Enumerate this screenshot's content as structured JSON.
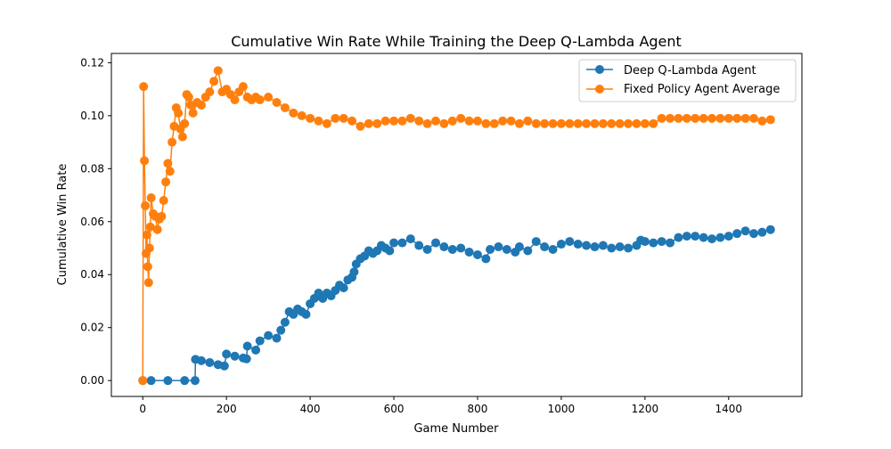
{
  "chart_data": {
    "type": "line",
    "title": "Cumulative Win Rate While Training the Deep Q-Lambda Agent",
    "xlabel": "Game Number",
    "ylabel": "Cumulative Win Rate",
    "xlim": [
      -75,
      1575
    ],
    "ylim": [
      -0.006,
      0.1235
    ],
    "xticks": [
      0,
      200,
      400,
      600,
      800,
      1000,
      1200,
      1400
    ],
    "yticks": [
      0.0,
      0.02,
      0.04,
      0.06,
      0.08,
      0.1,
      0.12
    ],
    "ytick_labels": [
      "0.00",
      "0.02",
      "0.04",
      "0.06",
      "0.08",
      "0.10",
      "0.12"
    ],
    "grid": false,
    "legend_position": "upper right",
    "series": [
      {
        "name": "Deep Q-Lambda Agent",
        "color": "#1f77b4",
        "marker": "circle",
        "points": [
          [
            0,
            0
          ],
          [
            20,
            0
          ],
          [
            60,
            0
          ],
          [
            100,
            0
          ],
          [
            125,
            0
          ],
          [
            126,
            0.008
          ],
          [
            140,
            0.0075
          ],
          [
            160,
            0.0068
          ],
          [
            180,
            0.006
          ],
          [
            195,
            0.0055
          ],
          [
            200,
            0.01
          ],
          [
            220,
            0.0092
          ],
          [
            240,
            0.0085
          ],
          [
            248,
            0.0082
          ],
          [
            250,
            0.013
          ],
          [
            270,
            0.0115
          ],
          [
            280,
            0.015
          ],
          [
            300,
            0.017
          ],
          [
            320,
            0.016
          ],
          [
            330,
            0.019
          ],
          [
            340,
            0.022
          ],
          [
            350,
            0.026
          ],
          [
            360,
            0.025
          ],
          [
            370,
            0.027
          ],
          [
            380,
            0.026
          ],
          [
            390,
            0.025
          ],
          [
            400,
            0.029
          ],
          [
            410,
            0.031
          ],
          [
            420,
            0.033
          ],
          [
            430,
            0.031
          ],
          [
            440,
            0.033
          ],
          [
            450,
            0.032
          ],
          [
            460,
            0.034
          ],
          [
            470,
            0.036
          ],
          [
            480,
            0.035
          ],
          [
            490,
            0.038
          ],
          [
            500,
            0.039
          ],
          [
            505,
            0.041
          ],
          [
            510,
            0.044
          ],
          [
            520,
            0.046
          ],
          [
            530,
            0.047
          ],
          [
            540,
            0.049
          ],
          [
            550,
            0.048
          ],
          [
            560,
            0.049
          ],
          [
            570,
            0.051
          ],
          [
            580,
            0.05
          ],
          [
            590,
            0.049
          ],
          [
            600,
            0.052
          ],
          [
            620,
            0.052
          ],
          [
            640,
            0.0535
          ],
          [
            660,
            0.051
          ],
          [
            680,
            0.0495
          ],
          [
            700,
            0.052
          ],
          [
            720,
            0.0505
          ],
          [
            740,
            0.0495
          ],
          [
            760,
            0.05
          ],
          [
            780,
            0.0485
          ],
          [
            800,
            0.0475
          ],
          [
            820,
            0.046
          ],
          [
            830,
            0.0495
          ],
          [
            850,
            0.0505
          ],
          [
            870,
            0.0495
          ],
          [
            890,
            0.0485
          ],
          [
            900,
            0.0505
          ],
          [
            920,
            0.049
          ],
          [
            940,
            0.0525
          ],
          [
            960,
            0.0505
          ],
          [
            980,
            0.0495
          ],
          [
            1000,
            0.0515
          ],
          [
            1020,
            0.0525
          ],
          [
            1040,
            0.0515
          ],
          [
            1060,
            0.051
          ],
          [
            1080,
            0.0505
          ],
          [
            1100,
            0.051
          ],
          [
            1120,
            0.05
          ],
          [
            1140,
            0.0505
          ],
          [
            1160,
            0.05
          ],
          [
            1180,
            0.051
          ],
          [
            1190,
            0.053
          ],
          [
            1200,
            0.0525
          ],
          [
            1220,
            0.052
          ],
          [
            1240,
            0.0525
          ],
          [
            1260,
            0.052
          ],
          [
            1280,
            0.054
          ],
          [
            1300,
            0.0545
          ],
          [
            1320,
            0.0545
          ],
          [
            1340,
            0.054
          ],
          [
            1360,
            0.0535
          ],
          [
            1380,
            0.054
          ],
          [
            1400,
            0.0545
          ],
          [
            1420,
            0.0555
          ],
          [
            1440,
            0.0565
          ],
          [
            1460,
            0.0555
          ],
          [
            1480,
            0.056
          ],
          [
            1500,
            0.057
          ]
        ]
      },
      {
        "name": "Fixed Policy Agent Average",
        "color": "#ff7f0e",
        "marker": "circle",
        "points": [
          [
            0,
            0
          ],
          [
            2,
            0.111
          ],
          [
            4,
            0.083
          ],
          [
            6,
            0.066
          ],
          [
            8,
            0.048
          ],
          [
            10,
            0.055
          ],
          [
            12,
            0.043
          ],
          [
            14,
            0.037
          ],
          [
            16,
            0.05
          ],
          [
            18,
            0.058
          ],
          [
            20,
            0.069
          ],
          [
            25,
            0.063
          ],
          [
            30,
            0.062
          ],
          [
            35,
            0.057
          ],
          [
            40,
            0.061
          ],
          [
            45,
            0.062
          ],
          [
            50,
            0.068
          ],
          [
            55,
            0.075
          ],
          [
            60,
            0.082
          ],
          [
            65,
            0.079
          ],
          [
            70,
            0.09
          ],
          [
            75,
            0.096
          ],
          [
            80,
            0.103
          ],
          [
            85,
            0.101
          ],
          [
            90,
            0.095
          ],
          [
            95,
            0.092
          ],
          [
            100,
            0.097
          ],
          [
            105,
            0.108
          ],
          [
            110,
            0.107
          ],
          [
            115,
            0.104
          ],
          [
            120,
            0.101
          ],
          [
            130,
            0.105
          ],
          [
            140,
            0.104
          ],
          [
            150,
            0.107
          ],
          [
            160,
            0.109
          ],
          [
            170,
            0.113
          ],
          [
            180,
            0.117
          ],
          [
            190,
            0.109
          ],
          [
            200,
            0.11
          ],
          [
            210,
            0.108
          ],
          [
            220,
            0.106
          ],
          [
            230,
            0.109
          ],
          [
            240,
            0.111
          ],
          [
            250,
            0.107
          ],
          [
            260,
            0.106
          ],
          [
            270,
            0.107
          ],
          [
            280,
            0.106
          ],
          [
            300,
            0.107
          ],
          [
            320,
            0.105
          ],
          [
            340,
            0.103
          ],
          [
            360,
            0.101
          ],
          [
            380,
            0.1
          ],
          [
            400,
            0.099
          ],
          [
            420,
            0.098
          ],
          [
            440,
            0.097
          ],
          [
            460,
            0.099
          ],
          [
            480,
            0.099
          ],
          [
            500,
            0.098
          ],
          [
            520,
            0.096
          ],
          [
            540,
            0.097
          ],
          [
            560,
            0.097
          ],
          [
            580,
            0.098
          ],
          [
            600,
            0.098
          ],
          [
            620,
            0.098
          ],
          [
            640,
            0.099
          ],
          [
            660,
            0.098
          ],
          [
            680,
            0.097
          ],
          [
            700,
            0.098
          ],
          [
            720,
            0.097
          ],
          [
            740,
            0.098
          ],
          [
            760,
            0.099
          ],
          [
            780,
            0.098
          ],
          [
            800,
            0.098
          ],
          [
            820,
            0.097
          ],
          [
            840,
            0.097
          ],
          [
            860,
            0.098
          ],
          [
            880,
            0.098
          ],
          [
            900,
            0.097
          ],
          [
            920,
            0.098
          ],
          [
            940,
            0.097
          ],
          [
            960,
            0.097
          ],
          [
            980,
            0.097
          ],
          [
            1000,
            0.097
          ],
          [
            1020,
            0.097
          ],
          [
            1040,
            0.097
          ],
          [
            1060,
            0.097
          ],
          [
            1080,
            0.097
          ],
          [
            1100,
            0.097
          ],
          [
            1120,
            0.097
          ],
          [
            1140,
            0.097
          ],
          [
            1160,
            0.097
          ],
          [
            1180,
            0.097
          ],
          [
            1200,
            0.097
          ],
          [
            1220,
            0.097
          ],
          [
            1240,
            0.099
          ],
          [
            1260,
            0.099
          ],
          [
            1280,
            0.099
          ],
          [
            1300,
            0.099
          ],
          [
            1320,
            0.099
          ],
          [
            1340,
            0.099
          ],
          [
            1360,
            0.099
          ],
          [
            1380,
            0.099
          ],
          [
            1400,
            0.099
          ],
          [
            1420,
            0.099
          ],
          [
            1440,
            0.099
          ],
          [
            1460,
            0.099
          ],
          [
            1480,
            0.098
          ],
          [
            1500,
            0.0985
          ]
        ]
      }
    ]
  }
}
